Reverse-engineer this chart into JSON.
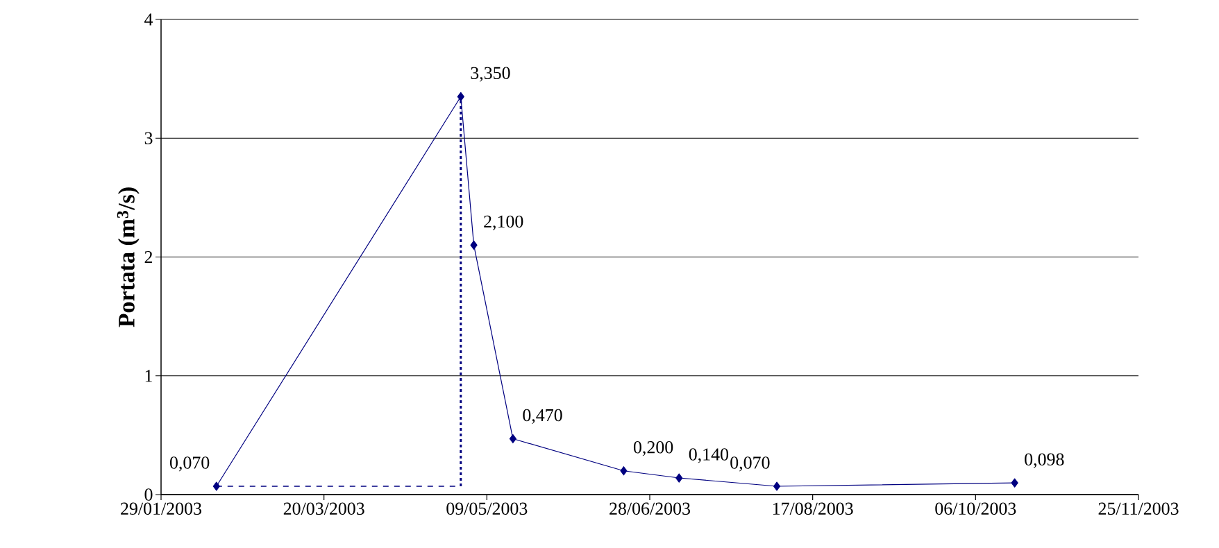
{
  "chart_data": {
    "type": "line",
    "ylabel": "Portata (m$^{3}$/s)",
    "x": [
      "2003-02-15",
      "2003-05-01",
      "2003-05-05",
      "2003-05-17",
      "2003-06-20",
      "2003-07-07",
      "2003-08-06",
      "2003-10-18"
    ],
    "series": [
      {
        "color": "#000080",
        "values": [
          0.07,
          3.35,
          2.1,
          0.47,
          0.2,
          0.14,
          0.07,
          0.098
        ],
        "value_labels": [
          "0,070",
          "3,350",
          "2,100",
          "0,470",
          "0,200",
          "0,140",
          "0,070",
          "0,098"
        ],
        "marker": "diamond",
        "line_style": "solid"
      },
      {
        "color": "#000080",
        "x": [
          "2003-02-15",
          "2003-05-01"
        ],
        "values": [
          0.07,
          0.07
        ],
        "marker": "none",
        "line_style": "dashed"
      },
      {
        "color": "#000080",
        "x": [
          "2003-05-01",
          "2003-05-01"
        ],
        "values": [
          0.07,
          3.35
        ],
        "marker": "none",
        "line_style": "dotted"
      }
    ],
    "xlim": [
      "2003-01-29",
      "2003-11-25"
    ],
    "xticks": [
      {
        "value": "2003-01-29",
        "label": "29/01/2003"
      },
      {
        "value": "2003-03-20",
        "label": "20/03/2003"
      },
      {
        "value": "2003-05-09",
        "label": "09/05/2003"
      },
      {
        "value": "2003-06-28",
        "label": "28/06/2003"
      },
      {
        "value": "2003-08-17",
        "label": "17/08/2003"
      },
      {
        "value": "2003-10-06",
        "label": "06/10/2003"
      },
      {
        "value": "2003-11-25",
        "label": "25/11/2003"
      }
    ],
    "ylim": [
      0,
      4
    ],
    "yticks": [
      0,
      1,
      2,
      3,
      4
    ],
    "grid": "y"
  }
}
